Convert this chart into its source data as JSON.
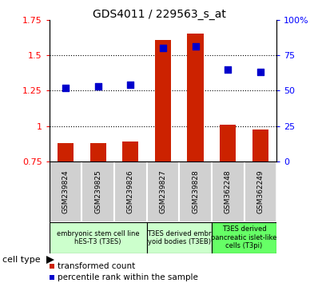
{
  "title": "GDS4011 / 229563_s_at",
  "samples": [
    "GSM239824",
    "GSM239825",
    "GSM239826",
    "GSM239827",
    "GSM239828",
    "GSM362248",
    "GSM362249"
  ],
  "transformed_count": [
    0.88,
    0.88,
    0.89,
    1.61,
    1.65,
    1.01,
    0.975
  ],
  "percentile_rank": [
    52,
    53,
    54,
    80,
    81,
    65,
    63
  ],
  "bar_bottom": 0.75,
  "ylim_left": [
    0.75,
    1.75
  ],
  "ylim_right": [
    0,
    100
  ],
  "yticks_left": [
    0.75,
    1.0,
    1.25,
    1.5,
    1.75
  ],
  "ytick_labels_left": [
    "0.75",
    "1",
    "1.25",
    "1.5",
    "1.75"
  ],
  "yticks_right": [
    0,
    25,
    50,
    75,
    100
  ],
  "ytick_labels_right": [
    "0",
    "25",
    "50",
    "75",
    "100%"
  ],
  "bar_color": "#cc2200",
  "dot_color": "#0000cc",
  "cell_groups": [
    {
      "label": "embryonic stem cell line\nhES-T3 (T3ES)",
      "start": 0,
      "end": 3,
      "color": "#ccffcc"
    },
    {
      "label": "T3ES derived embr\nyoid bodies (T3EB)",
      "start": 3,
      "end": 5,
      "color": "#ccffcc"
    },
    {
      "label": "T3ES derived\npancreatic islet-like\ncells (T3pi)",
      "start": 5,
      "end": 7,
      "color": "#66ff66"
    }
  ],
  "legend_bar_label": "transformed count",
  "legend_dot_label": "percentile rank within the sample",
  "cell_type_label": "cell type",
  "bar_width": 0.5,
  "dot_size": 30,
  "plot_bg_color": "#ffffff"
}
